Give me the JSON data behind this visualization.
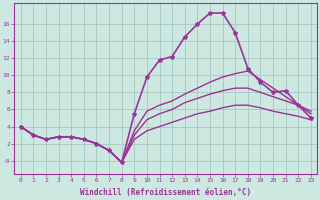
{
  "title": "",
  "xlabel": "Windchill (Refroidissement éolien,°C)",
  "ylabel": "",
  "background_color": "#cce8e0",
  "grid_color": "#aaccc4",
  "line_color": "#993399",
  "xlim": [
    -0.5,
    23.5
  ],
  "ylim": [
    -1.5,
    18.5
  ],
  "yticks": [
    0,
    2,
    4,
    6,
    8,
    10,
    12,
    14,
    16
  ],
  "ytick_labels": [
    "-0",
    "2",
    "4",
    "6",
    "8",
    "10",
    "12",
    "14",
    "16"
  ],
  "xticks": [
    0,
    1,
    2,
    3,
    4,
    5,
    6,
    7,
    8,
    9,
    10,
    11,
    12,
    13,
    14,
    15,
    16,
    17,
    18,
    19,
    20,
    21,
    22,
    23
  ],
  "series": [
    {
      "x": [
        0,
        1,
        2,
        3,
        4,
        5,
        6,
        7,
        8,
        9,
        10,
        11,
        12,
        13,
        14,
        15,
        16,
        17,
        18,
        19,
        20,
        21,
        22,
        23
      ],
      "y": [
        4.0,
        3.0,
        2.5,
        2.8,
        2.8,
        2.5,
        2.0,
        1.2,
        -0.2,
        5.5,
        9.8,
        11.8,
        12.2,
        14.5,
        16.0,
        17.3,
        17.3,
        15.0,
        10.8,
        9.2,
        8.0,
        8.2,
        6.5,
        5.0
      ],
      "marker": "*",
      "linewidth": 1.2
    },
    {
      "x": [
        0,
        1,
        2,
        3,
        4,
        5,
        6,
        7,
        8,
        9,
        10,
        11,
        12,
        13,
        14,
        15,
        16,
        17,
        18,
        19,
        20,
        21,
        22,
        23
      ],
      "y": [
        4.0,
        3.0,
        2.5,
        2.8,
        2.8,
        2.5,
        2.0,
        1.2,
        -0.2,
        3.5,
        5.8,
        6.5,
        7.0,
        7.8,
        8.5,
        9.2,
        9.8,
        10.2,
        10.5,
        9.5,
        8.5,
        7.5,
        6.5,
        5.5
      ],
      "marker": null,
      "linewidth": 1.0
    },
    {
      "x": [
        0,
        1,
        2,
        3,
        4,
        5,
        6,
        7,
        8,
        9,
        10,
        11,
        12,
        13,
        14,
        15,
        16,
        17,
        18,
        19,
        20,
        21,
        22,
        23
      ],
      "y": [
        4.0,
        3.0,
        2.5,
        2.8,
        2.8,
        2.5,
        2.0,
        1.2,
        -0.2,
        3.0,
        4.8,
        5.5,
        6.0,
        6.8,
        7.3,
        7.8,
        8.2,
        8.5,
        8.5,
        8.0,
        7.5,
        7.0,
        6.5,
        5.8
      ],
      "marker": null,
      "linewidth": 1.0
    },
    {
      "x": [
        0,
        1,
        2,
        3,
        4,
        5,
        6,
        7,
        8,
        9,
        10,
        11,
        12,
        13,
        14,
        15,
        16,
        17,
        18,
        19,
        20,
        21,
        22,
        23
      ],
      "y": [
        4.0,
        3.0,
        2.5,
        2.8,
        2.8,
        2.5,
        2.0,
        1.2,
        -0.2,
        2.5,
        3.5,
        4.0,
        4.5,
        5.0,
        5.5,
        5.8,
        6.2,
        6.5,
        6.5,
        6.2,
        5.8,
        5.5,
        5.2,
        4.8
      ],
      "marker": null,
      "linewidth": 1.0
    }
  ]
}
